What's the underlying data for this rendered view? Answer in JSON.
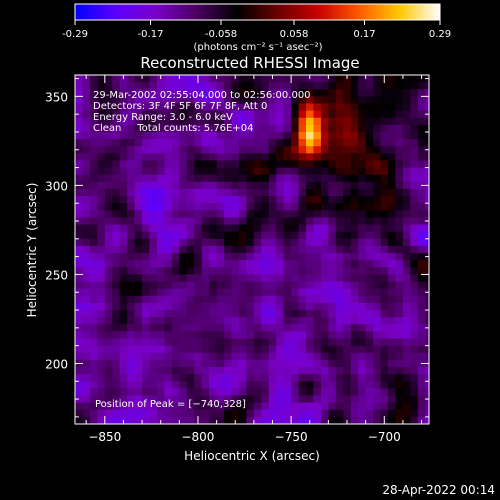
{
  "colorbar": {
    "tick_labels": [
      "-0.29",
      "-0.17",
      "-0.058",
      "0.058",
      "0.17",
      "0.29"
    ],
    "tick_values": [
      -0.29,
      -0.17,
      -0.058,
      0.058,
      0.17,
      0.29
    ],
    "range": [
      -0.29,
      0.29
    ],
    "unit_label": "(photons cm⁻² s⁻¹ asec⁻²)",
    "colormap": [
      "#0000ff",
      "#5a00ff",
      "#7a00c8",
      "#4a0060",
      "#000000",
      "#6a0000",
      "#c80000",
      "#ff5a00",
      "#ffc800",
      "#ffffff"
    ]
  },
  "chart_data": {
    "type": "heatmap",
    "title": "Reconstructed RHESSI Image",
    "xlabel": "Heliocentric X (arcsec)",
    "ylabel": "Heliocentric Y (arcsec)",
    "xlim": [
      -866,
      -676
    ],
    "ylim": [
      166,
      362
    ],
    "x_ticks": [
      -850,
      -800,
      -750,
      -700
    ],
    "y_ticks": [
      200,
      250,
      300,
      350
    ],
    "x_tick_labels": [
      "−850",
      "−800",
      "−750",
      "−700"
    ],
    "y_tick_labels": [
      "200",
      "250",
      "300",
      "350"
    ],
    "peak": [
      -740,
      328
    ],
    "peak_value": 0.29,
    "background_level": -0.12
  },
  "annotations": {
    "time_range": "29-Mar-2002 02:55:04.000 to 02:56:00.000",
    "detectors": "Detectors: 3F 4F 5F 6F 7F 8F, Att 0",
    "energy": "Energy Range: 3.0 - 6.0 keV",
    "clean": "Clean     Total counts: 5.76E+04",
    "peak_text": "Position of Peak = [−740,328]"
  },
  "footer": {
    "timestamp": "28-Apr-2022 00:14"
  }
}
